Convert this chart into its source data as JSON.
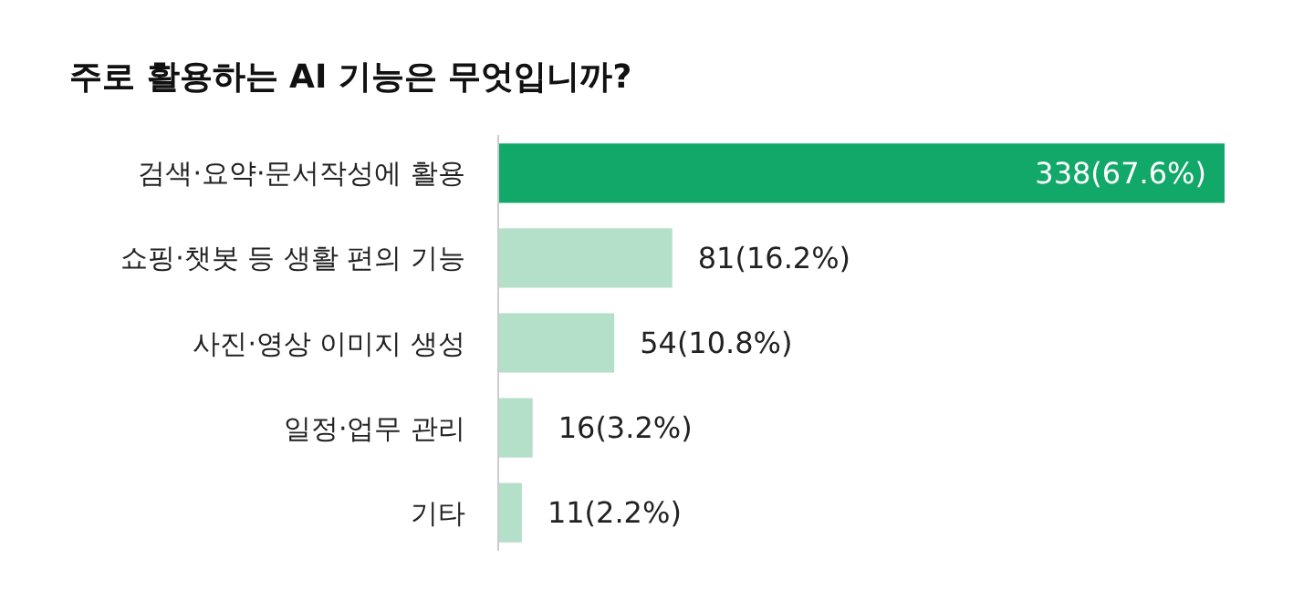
{
  "chart_data": {
    "type": "bar",
    "orientation": "horizontal",
    "title": "주로 활용하는 AI 기능은 무엇입니까?",
    "categories": [
      "검색·요약·문서작성에 활용",
      "쇼핑·챗봇 등 생활 편의 기능",
      "사진·영상 이미지 생성",
      "일정·업무 관리",
      "기타"
    ],
    "values": [
      338,
      81,
      54,
      16,
      11
    ],
    "colors": [
      "#12a86a",
      "#b4dfc9",
      "#b4dfc9",
      "#b4dfc9",
      "#b4dfc9"
    ],
    "value_labels": [
      "338(67.6%)",
      "81(16.2%)",
      "54(10.8%)",
      "16(3.2%)",
      "11(2.2%)"
    ]
  }
}
